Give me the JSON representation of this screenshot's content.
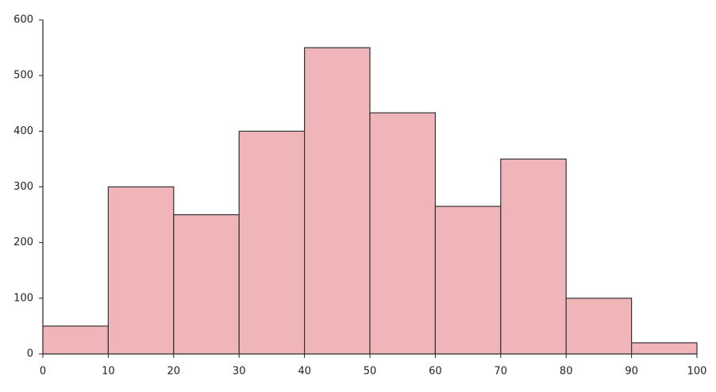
{
  "chart_data": {
    "type": "histogram",
    "bins": [
      0,
      10,
      20,
      30,
      40,
      50,
      60,
      70,
      80,
      90,
      100
    ],
    "values": [
      50,
      300,
      250,
      400,
      550,
      433,
      265,
      350,
      100,
      20
    ],
    "color": "#efb5b9",
    "edgecolor": "#333333",
    "xlim": [
      0,
      100
    ],
    "xticks": [
      0,
      10,
      20,
      30,
      40,
      50,
      60,
      70,
      80,
      90,
      100
    ],
    "ylim": [
      0,
      600
    ],
    "yticks": [
      0,
      100,
      200,
      300,
      400,
      500,
      600
    ],
    "grid": false
  }
}
